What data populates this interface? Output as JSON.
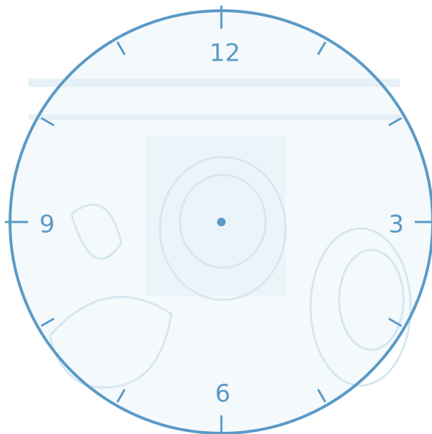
{
  "clock": {
    "labels": [
      "12",
      "3",
      "6",
      "9"
    ]
  }
}
